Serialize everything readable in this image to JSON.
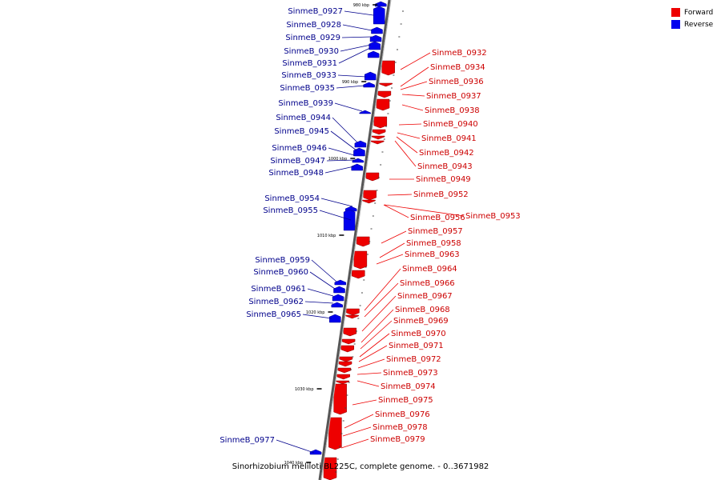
{
  "legend": {
    "forward_label": "Forward",
    "reverse_label": "Reverse",
    "forward_color": "#ee0000",
    "reverse_color": "#0000ee"
  },
  "caption": "Sinorhizobium meliloti BL225C, complete genome. - 0..3671982",
  "ticks": [
    {
      "label": "980 kbp"
    },
    {
      "label": "990 kbp"
    },
    {
      "label": "1000 kbp"
    },
    {
      "label": "1010 kbp"
    },
    {
      "label": "1020 kbp"
    },
    {
      "label": "1030 kbp"
    },
    {
      "label": "1040 kbp"
    }
  ],
  "reverse_genes": [
    "SinmeB_0927",
    "SinmeB_0928",
    "SinmeB_0929",
    "SinmeB_0930",
    "SinmeB_0931",
    "SinmeB_0933",
    "SinmeB_0935",
    "SinmeB_0939",
    "SinmeB_0944",
    "SinmeB_0945",
    "SinmeB_0946",
    "SinmeB_0947",
    "SinmeB_0948",
    "SinmeB_0954",
    "SinmeB_0955",
    "SinmeB_0959",
    "SinmeB_0960",
    "SinmeB_0961",
    "SinmeB_0962",
    "SinmeB_0965",
    "SinmeB_0977"
  ],
  "forward_genes": [
    "SinmeB_0932",
    "SinmeB_0934",
    "SinmeB_0936",
    "SinmeB_0937",
    "SinmeB_0938",
    "SinmeB_0940",
    "SinmeB_0941",
    "SinmeB_0942",
    "SinmeB_0943",
    "SinmeB_0949",
    "SinmeB_0952",
    "SinmeB_0953",
    "SinmeB_0956",
    "SinmeB_0957",
    "SinmeB_0958",
    "SinmeB_0963",
    "SinmeB_0964",
    "SinmeB_0966",
    "SinmeB_0967",
    "SinmeB_0968",
    "SinmeB_0969",
    "SinmeB_0970",
    "SinmeB_0971",
    "SinmeB_0972",
    "SinmeB_0973",
    "SinmeB_0974",
    "SinmeB_0975",
    "SinmeB_0976",
    "SinmeB_0978",
    "SinmeB_0979"
  ]
}
